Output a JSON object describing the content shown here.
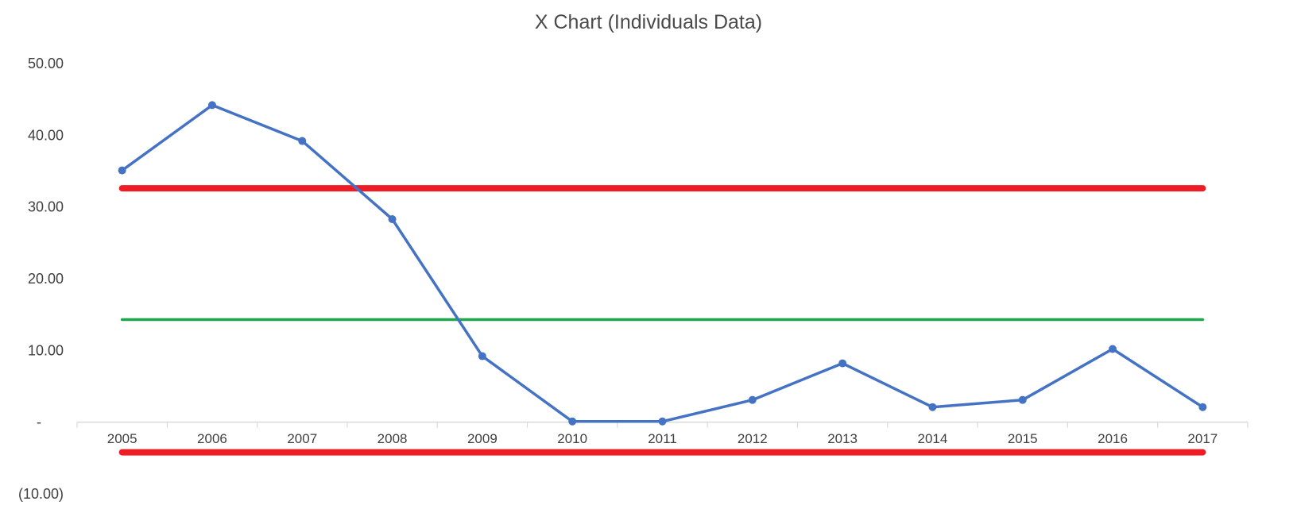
{
  "chart_data": {
    "type": "line",
    "title": "X Chart (Individuals Data)",
    "xlabel": "",
    "ylabel": "",
    "categories": [
      "2005",
      "2006",
      "2007",
      "2008",
      "2009",
      "2010",
      "2011",
      "2012",
      "2013",
      "2014",
      "2015",
      "2016",
      "2017"
    ],
    "series": [
      {
        "values": [
          35.1,
          44.2,
          39.2,
          28.3,
          9.2,
          0.1,
          0.1,
          3.1,
          8.2,
          2.1,
          3.1,
          10.2,
          2.1
        ],
        "color": "#4472c4"
      }
    ],
    "reference_lines": [
      {
        "kind": "upper-limit",
        "value": 32.6,
        "color": "#ee1c25"
      },
      {
        "kind": "center-line",
        "value": 14.3,
        "color": "#1ea64a"
      },
      {
        "kind": "lower-limit",
        "value": -4.2,
        "color": "#ee1c25"
      }
    ],
    "ylim": [
      -10,
      50
    ],
    "y_ticks": [
      {
        "value": 50,
        "label": "50.00"
      },
      {
        "value": 40,
        "label": "40.00"
      },
      {
        "value": 30,
        "label": "30.00"
      },
      {
        "value": 20,
        "label": "20.00"
      },
      {
        "value": 10,
        "label": "10.00"
      },
      {
        "value": 0,
        "label": "-"
      },
      {
        "value": -10,
        "label": "(10.00)"
      }
    ],
    "grid": false,
    "legend": "none",
    "axis_color": "#d9d9d9",
    "text_color": "#404040"
  }
}
